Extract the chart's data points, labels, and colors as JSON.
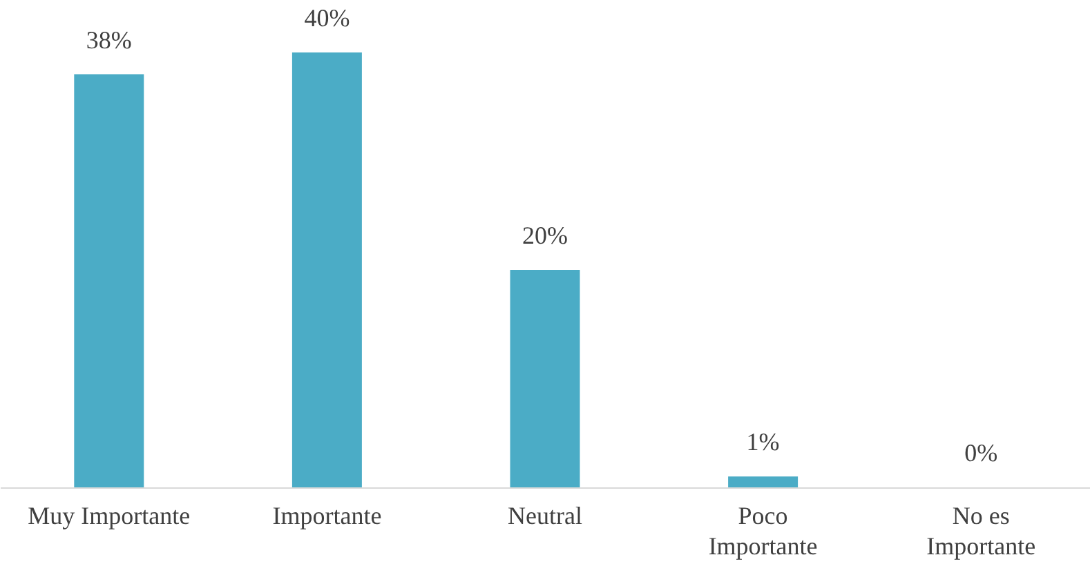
{
  "chart_data": {
    "type": "bar",
    "categories": [
      "Muy Importante",
      "Importante",
      "Neutral",
      "Poco Importante",
      "No es Importante"
    ],
    "values": [
      38,
      40,
      20,
      1,
      0
    ],
    "color": "#4bacc6",
    "value_labels": [
      "38%",
      "40%",
      "20%",
      "1%",
      "0%"
    ],
    "grid": false
  }
}
